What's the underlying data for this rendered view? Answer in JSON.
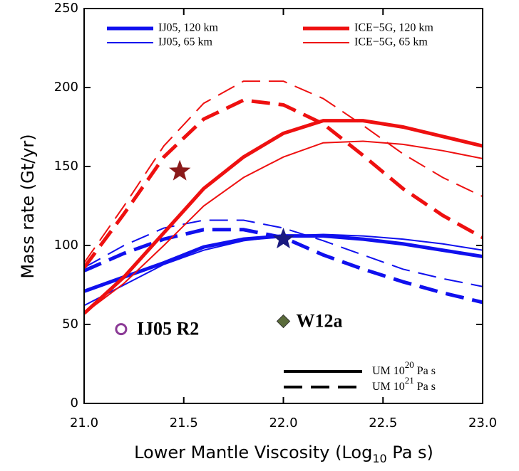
{
  "chart_data": {
    "type": "line",
    "x_label": {
      "base": "Lower Mantle Viscosity (Log",
      "sub": "10",
      "rest": " Pa s)"
    },
    "y_label": "Mass rate (Gt/yr)",
    "x": [
      21.0,
      21.2,
      21.4,
      21.6,
      21.8,
      22.0,
      22.2,
      22.4,
      22.6,
      22.8,
      23.0
    ],
    "xlim": [
      21.0,
      23.0
    ],
    "xticks": [
      {
        "value": 21.0,
        "label": "21.0"
      },
      {
        "value": 21.5,
        "label": "21.5"
      },
      {
        "value": 22.0,
        "label": "22.0"
      },
      {
        "value": 22.5,
        "label": "22.5"
      },
      {
        "value": 23.0,
        "label": "23.0"
      }
    ],
    "ylim": [
      0,
      250
    ],
    "yticks": [
      0,
      50,
      100,
      150,
      200,
      250
    ],
    "line_styles": [
      {
        "dash": "none",
        "label": {
          "base": "UM 10",
          "sup": "20",
          "unit": "Pa s"
        }
      },
      {
        "dash": "26 12",
        "label": {
          "base": "UM 10",
          "sup": "21",
          "unit": "Pa s"
        }
      }
    ],
    "series": [
      {
        "name": "IJ05, 120 km",
        "color": "#1010ee",
        "width": 5,
        "lines": [
          {
            "values": [
              71,
              80,
              89,
              99,
              104,
              106,
              106,
              104,
              101,
              97,
              93
            ]
          },
          {
            "values": [
              84,
              95,
              104,
              110,
              110,
              105,
              94,
              85,
              77,
              70,
              64
            ]
          }
        ]
      },
      {
        "name": "IJ05, 65 km",
        "color": "#1010ee",
        "width": 2,
        "lines": [
          {
            "values": [
              62,
              75,
              88,
              97,
              103,
              106,
              107,
              106,
              104,
              101,
              97
            ]
          },
          {
            "values": [
              86,
              100,
              111,
              116,
              116,
              111,
              103,
              94,
              85,
              79,
              74
            ]
          }
        ]
      },
      {
        "name": "ICE−5G, 120 km",
        "color": "#ee1010",
        "width": 5,
        "lines": [
          {
            "values": [
              57,
              80,
              108,
              136,
              156,
              171,
              179,
              179,
              175,
              169,
              163
            ]
          },
          {
            "values": [
              86,
              120,
              156,
              180,
              192,
              189,
              177,
              157,
              136,
              119,
              105
            ]
          }
        ]
      },
      {
        "name": "ICE−5G, 65 km",
        "color": "#ee1010",
        "width": 2,
        "lines": [
          {
            "values": [
              57,
              76,
              100,
              125,
              143,
              156,
              165,
              166,
              164,
              160,
              155
            ]
          },
          {
            "values": [
              89,
              125,
              163,
              190,
              204,
              204,
              193,
              176,
              158,
              143,
              131
            ]
          }
        ]
      }
    ],
    "stars": [
      {
        "x": 21.48,
        "y": 147,
        "color": "#8b1a1a"
      },
      {
        "x": 22.0,
        "y": 104,
        "color": "#1a1a80"
      }
    ],
    "annotations": [
      {
        "text": "IJ05 R2",
        "x": 21.2,
        "y": 47,
        "color": "#8b3a96",
        "marker": "circle"
      },
      {
        "text": "W12a",
        "x": 22.0,
        "y": 52,
        "color": "#5a6b3a",
        "marker": "diamond"
      }
    ]
  }
}
